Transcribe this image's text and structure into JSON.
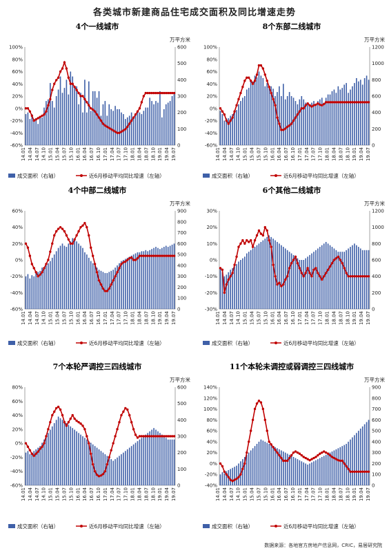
{
  "title": "各类城市新建商品住宅成交面积及同比增速走势",
  "source": "数据来源：各地官方房地产信息网，CRIC，易居研究院",
  "colors": {
    "bar": "#3f60a8",
    "line": "#c00000"
  },
  "chart_data": [
    {
      "type": "bar+line",
      "title": "4个一线城市",
      "unit": "万平方米",
      "legend": [
        "成交面积（右轴）",
        "近6月移动平均同比增速（左轴）"
      ],
      "y_left": {
        "ticks": [
          "100%",
          "80%",
          "60%",
          "40%",
          "20%",
          "0%",
          "-20%",
          "-40%",
          "-60%"
        ],
        "range": [
          -60,
          100
        ]
      },
      "y_right": {
        "ticks": [
          "600",
          "500",
          "400",
          "300",
          "200",
          "100",
          "0"
        ],
        "range": [
          0,
          600
        ]
      },
      "x_ticks": [
        "14.01",
        "14.04",
        "14.07",
        "14.10",
        "15.01",
        "15.04",
        "15.07",
        "15.10",
        "16.01",
        "16.04",
        "16.07",
        "16.10",
        "17.01",
        "17.04",
        "17.07",
        "17.10",
        "18.01",
        "18.04",
        "18.07",
        "18.10",
        "19.01",
        "19.04",
        "19.07"
      ],
      "bars": [
        190,
        200,
        160,
        190,
        160,
        160,
        130,
        170,
        170,
        230,
        270,
        280,
        380,
        270,
        230,
        300,
        340,
        420,
        320,
        350,
        400,
        310,
        450,
        420,
        360,
        360,
        250,
        320,
        200,
        400,
        200,
        390,
        210,
        330,
        330,
        290,
        330,
        180,
        250,
        270,
        180,
        250,
        220,
        210,
        240,
        220,
        220,
        200,
        190,
        160,
        170,
        180,
        200,
        170,
        180,
        210,
        200,
        190,
        210,
        230,
        230,
        290,
        270,
        250,
        270,
        260,
        330,
        170,
        220,
        250,
        260,
        270,
        300,
        320
      ],
      "line": [
        0,
        0,
        -5,
        -12,
        -20,
        -18,
        -16,
        -14,
        -12,
        -10,
        -5,
        5,
        15,
        30,
        40,
        46,
        50,
        60,
        65,
        75,
        65,
        50,
        40,
        40,
        35,
        30,
        25,
        20,
        20,
        15,
        10,
        5,
        0,
        -2,
        -5,
        -10,
        -15,
        -20,
        -25,
        -28,
        -30,
        -32,
        -34,
        -36,
        -38,
        -40,
        -40,
        -38,
        -36,
        -34,
        -30,
        -25,
        -20,
        -15,
        -10,
        -5,
        0,
        10,
        20,
        25,
        25,
        25,
        25,
        25,
        25,
        25,
        25,
        25,
        25,
        25,
        25,
        25,
        25,
        25
      ]
    },
    {
      "type": "bar+line",
      "title": "8个东部二线城市",
      "unit": "万平方米",
      "legend": [
        "成交面积（右轴）",
        "近6月移动平均同比增速（左轴）"
      ],
      "y_left": {
        "ticks": [
          "100%",
          "80%",
          "60%",
          "40%",
          "20%",
          "0%",
          "-20%",
          "-40%",
          "-60%"
        ],
        "range": [
          -60,
          100
        ]
      },
      "y_right": {
        "ticks": [
          "1200",
          "1000",
          "800",
          "600",
          "400",
          "200",
          "0"
        ],
        "range": [
          0,
          1200
        ]
      },
      "x_ticks": [
        "14.01",
        "14.04",
        "14.07",
        "14.10",
        "15.01",
        "15.04",
        "15.07",
        "15.10",
        "16.01",
        "16.04",
        "16.07",
        "16.10",
        "17.01",
        "17.04",
        "17.07",
        "17.10",
        "18.01",
        "18.04",
        "18.07",
        "18.10",
        "19.01",
        "19.04",
        "19.07"
      ],
      "bars": [
        420,
        380,
        300,
        330,
        330,
        360,
        380,
        400,
        430,
        500,
        540,
        580,
        600,
        680,
        700,
        800,
        780,
        850,
        830,
        900,
        850,
        820,
        720,
        760,
        700,
        720,
        690,
        600,
        650,
        720,
        600,
        750,
        560,
        600,
        650,
        600,
        580,
        540,
        500,
        560,
        600,
        560,
        520,
        520,
        500,
        520,
        540,
        500,
        540,
        560,
        580,
        520,
        580,
        620,
        620,
        660,
        680,
        640,
        720,
        680,
        700,
        740,
        760,
        640,
        680,
        720,
        760,
        820,
        780,
        800,
        740,
        820,
        850,
        800
      ],
      "line": [
        0,
        -5,
        -10,
        -20,
        -25,
        -20,
        -15,
        -5,
        5,
        15,
        25,
        35,
        45,
        50,
        50,
        45,
        40,
        45,
        55,
        70,
        70,
        65,
        55,
        45,
        35,
        25,
        15,
        5,
        -15,
        -25,
        -35,
        -35,
        -33,
        -30,
        -28,
        -25,
        -20,
        -15,
        -10,
        -5,
        0,
        0,
        5,
        8,
        5,
        3,
        5,
        6,
        8,
        6,
        5,
        7,
        10,
        10,
        10,
        10,
        10,
        10,
        10,
        10,
        10,
        10,
        10,
        10,
        10,
        10,
        10,
        10,
        10,
        10,
        10,
        10,
        10,
        10
      ]
    },
    {
      "type": "bar+line",
      "title": "4个中部二线城市",
      "unit": "万平方米",
      "legend": [
        "成交面积（右轴）",
        "近6月移动平均同比增速（左轴）"
      ],
      "y_left": {
        "ticks": [
          "60%",
          "40%",
          "20%",
          "0%",
          "-20%",
          "-40%",
          "-60%"
        ],
        "range": [
          -60,
          60
        ]
      },
      "y_right": {
        "ticks": [
          "900",
          "800",
          "700",
          "600",
          "500",
          "400",
          "300",
          "200",
          "100",
          "0"
        ],
        "range": [
          0,
          900
        ]
      },
      "x_ticks": [
        "14.01",
        "14.04",
        "14.07",
        "14.10",
        "15.01",
        "15.04",
        "15.07",
        "15.10",
        "16.01",
        "16.04",
        "16.07",
        "16.10",
        "17.01",
        "17.04",
        "17.07",
        "17.10",
        "18.01",
        "18.04",
        "18.07",
        "18.10",
        "19.01",
        "19.04",
        "19.07"
      ],
      "bars": [
        300,
        320,
        280,
        310,
        300,
        330,
        340,
        350,
        380,
        380,
        400,
        420,
        440,
        470,
        500,
        530,
        560,
        580,
        600,
        580,
        570,
        600,
        620,
        650,
        640,
        620,
        600,
        580,
        560,
        520,
        500,
        470,
        440,
        420,
        400,
        380,
        360,
        350,
        340,
        330,
        330,
        340,
        350,
        360,
        380,
        400,
        420,
        440,
        450,
        460,
        470,
        480,
        490,
        500,
        510,
        520,
        520,
        530,
        530,
        540,
        530,
        540,
        550,
        560,
        570,
        560,
        550,
        560,
        570,
        580,
        570,
        580,
        590,
        600
      ],
      "line": [
        20,
        15,
        5,
        -5,
        -10,
        -15,
        -20,
        -18,
        -15,
        -10,
        -5,
        0,
        10,
        20,
        30,
        35,
        38,
        40,
        38,
        35,
        30,
        25,
        20,
        20,
        25,
        30,
        35,
        40,
        42,
        45,
        40,
        30,
        15,
        5,
        -5,
        -15,
        -25,
        -30,
        -35,
        -38,
        -38,
        -35,
        -30,
        -25,
        -20,
        -15,
        -10,
        -5,
        -3,
        -2,
        0,
        2,
        3,
        0,
        0,
        2,
        5,
        5,
        5,
        5,
        5,
        5,
        5,
        5,
        5,
        5,
        5,
        5,
        5,
        5,
        5,
        5,
        5,
        5
      ]
    },
    {
      "type": "bar+line",
      "title": "6个其他二线城市",
      "unit": "万平方米",
      "legend": [
        "成交面积（右轴）",
        "近6月移动平均同比增速（左轴）"
      ],
      "y_left": {
        "ticks": [
          "30%",
          "20%",
          "10%",
          "0%",
          "-10%",
          "-20%",
          "-30%"
        ],
        "range": [
          -30,
          30
        ]
      },
      "y_right": {
        "ticks": [
          "1200",
          "1000",
          "800",
          "600",
          "400",
          "200",
          "0"
        ],
        "range": [
          0,
          1200
        ]
      },
      "x_ticks": [
        "14.01",
        "14.04",
        "14.07",
        "14.10",
        "15.01",
        "15.04",
        "15.07",
        "15.10",
        "16.01",
        "16.04",
        "16.07",
        "16.10",
        "17.01",
        "17.04",
        "17.07",
        "17.10",
        "18.01",
        "18.04",
        "18.07",
        "18.10",
        "19.01",
        "19.04",
        "19.07"
      ],
      "bars": [
        500,
        450,
        400,
        420,
        450,
        480,
        500,
        520,
        550,
        580,
        600,
        620,
        640,
        680,
        700,
        720,
        740,
        760,
        780,
        800,
        820,
        840,
        860,
        880,
        900,
        880,
        860,
        840,
        820,
        800,
        780,
        760,
        740,
        720,
        700,
        680,
        660,
        640,
        620,
        600,
        600,
        600,
        620,
        640,
        660,
        680,
        700,
        720,
        740,
        760,
        780,
        800,
        820,
        800,
        780,
        760,
        740,
        720,
        700,
        700,
        700,
        700,
        720,
        740,
        760,
        780,
        800,
        780,
        760,
        740,
        720,
        720,
        720,
        720
      ],
      "line": [
        -5,
        -6,
        -20,
        -15,
        -12,
        -10,
        -8,
        -3,
        2,
        8,
        10,
        12,
        10,
        12,
        11,
        12,
        8,
        12,
        15,
        18,
        16,
        15,
        20,
        18,
        12,
        8,
        -3,
        -10,
        -15,
        -14,
        -16,
        -15,
        -12,
        -10,
        -5,
        -2,
        0,
        2,
        -2,
        -5,
        -8,
        -10,
        -8,
        -5,
        -8,
        -10,
        -6,
        -5,
        -8,
        -10,
        -12,
        -10,
        -8,
        -6,
        -4,
        -2,
        0,
        1,
        2,
        0,
        -2,
        -5,
        -8,
        -10,
        -10,
        -10,
        -10,
        -10,
        -10,
        -10,
        -10,
        -10,
        -10,
        -10
      ]
    },
    {
      "type": "bar+line",
      "title": "7个本轮严调控三四线城市",
      "unit": "万平方米",
      "legend": [
        "成交面积（右轴）",
        "近6月移动平均同比增速（左轴）"
      ],
      "y_left": {
        "ticks": [
          "80%",
          "60%",
          "40%",
          "20%",
          "0%",
          "-20%",
          "-40%",
          "-60%"
        ],
        "range": [
          -60,
          80
        ]
      },
      "y_right": {
        "ticks": [
          "600",
          "500",
          "400",
          "300",
          "200",
          "100",
          "0"
        ],
        "range": [
          0,
          600
        ]
      },
      "x_ticks": [
        "14.01",
        "14.04",
        "14.07",
        "14.10",
        "15.01",
        "15.04",
        "15.07",
        "15.10",
        "16.01",
        "16.04",
        "16.07",
        "16.10",
        "17.01",
        "17.04",
        "17.07",
        "17.10",
        "18.01",
        "18.04",
        "18.07",
        "18.10",
        "19.01",
        "19.04",
        "19.07"
      ],
      "bars": [
        200,
        210,
        190,
        200,
        210,
        220,
        230,
        240,
        260,
        280,
        300,
        320,
        340,
        360,
        380,
        400,
        420,
        410,
        400,
        390,
        380,
        370,
        360,
        350,
        340,
        330,
        320,
        310,
        300,
        290,
        280,
        270,
        260,
        250,
        240,
        230,
        220,
        210,
        200,
        190,
        180,
        170,
        160,
        150,
        160,
        170,
        180,
        190,
        200,
        210,
        220,
        230,
        240,
        250,
        260,
        270,
        280,
        290,
        300,
        310,
        320,
        330,
        340,
        350,
        340,
        330,
        320,
        310,
        300,
        290,
        280,
        280,
        280,
        280
      ],
      "line": [
        0,
        -5,
        -10,
        -15,
        -18,
        -15,
        -12,
        -8,
        -5,
        0,
        10,
        20,
        30,
        40,
        45,
        50,
        52,
        48,
        40,
        30,
        25,
        30,
        35,
        40,
        35,
        32,
        30,
        28,
        25,
        20,
        10,
        0,
        -15,
        -30,
        -40,
        -45,
        -47,
        -46,
        -44,
        -40,
        -30,
        -20,
        -10,
        0,
        10,
        20,
        30,
        40,
        45,
        50,
        48,
        40,
        30,
        20,
        12,
        8,
        10,
        10,
        10,
        10,
        10,
        10,
        10,
        10,
        10,
        10,
        10,
        10,
        10,
        10,
        10,
        10,
        10,
        10
      ]
    },
    {
      "type": "bar+line",
      "title": "11个本轮未调控或弱调控三四线城市",
      "unit": "万平方米",
      "legend": [
        "成交面积（右轴）",
        "近6月移动平均同比增速（左轴）"
      ],
      "y_left": {
        "ticks": [
          "140%",
          "120%",
          "100%",
          "80%",
          "60%",
          "40%",
          "20%",
          "0%",
          "-20%",
          "-40%"
        ],
        "range": [
          -40,
          140
        ]
      },
      "y_right": {
        "ticks": [
          "900",
          "800",
          "700",
          "600",
          "500",
          "400",
          "300",
          "200",
          "100",
          "0"
        ],
        "range": [
          0,
          900
        ]
      },
      "x_ticks": [
        "14.01",
        "14.04",
        "14.07",
        "14.10",
        "15.01",
        "15.04",
        "15.07",
        "15.10",
        "16.01",
        "16.04",
        "16.07",
        "16.10",
        "17.01",
        "17.04",
        "17.07",
        "17.10",
        "18.01",
        "18.04",
        "18.07",
        "18.10",
        "19.01",
        "19.04",
        "19.07"
      ],
      "bars": [
        100,
        120,
        110,
        130,
        140,
        150,
        160,
        170,
        180,
        200,
        220,
        240,
        260,
        280,
        300,
        320,
        340,
        360,
        380,
        400,
        420,
        410,
        400,
        390,
        380,
        370,
        360,
        350,
        340,
        330,
        320,
        310,
        300,
        290,
        280,
        270,
        260,
        250,
        240,
        230,
        220,
        210,
        200,
        190,
        200,
        210,
        220,
        230,
        240,
        250,
        260,
        270,
        280,
        290,
        300,
        310,
        320,
        330,
        340,
        350,
        360,
        370,
        380,
        400,
        420,
        440,
        460,
        480,
        500,
        520,
        540,
        560,
        580,
        600
      ],
      "line": [
        0,
        -5,
        -15,
        -20,
        -25,
        -30,
        -32,
        -30,
        -28,
        -25,
        -20,
        -10,
        0,
        20,
        40,
        60,
        80,
        100,
        110,
        115,
        112,
        100,
        80,
        60,
        40,
        35,
        30,
        25,
        20,
        15,
        10,
        5,
        5,
        5,
        10,
        15,
        20,
        22,
        20,
        18,
        15,
        12,
        10,
        8,
        6,
        8,
        10,
        12,
        15,
        18,
        20,
        22,
        20,
        18,
        15,
        12,
        10,
        8,
        6,
        5,
        5,
        0,
        -5,
        -10,
        -15,
        -15,
        -15,
        -15,
        -15,
        -15,
        -15,
        -15,
        -15,
        -15
      ]
    }
  ]
}
